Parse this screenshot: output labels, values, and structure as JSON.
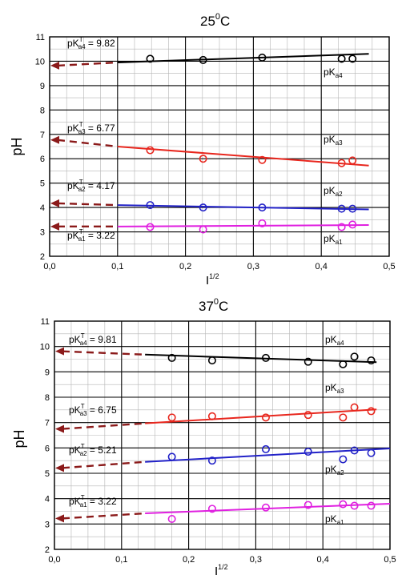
{
  "chart_data": [
    {
      "type": "scatter",
      "title": "25",
      "title_sup": "0",
      "title_suffix": "C",
      "xlabel": "I",
      "xlabel_sup": "1/2",
      "ylabel": "pH",
      "xlim": [
        0.0,
        0.5
      ],
      "ylim": [
        2,
        11
      ],
      "xticks": [
        "0,0",
        "0,1",
        "0,2",
        "0,3",
        "0,4",
        "0,5"
      ],
      "yticks": [
        "2",
        "3",
        "4",
        "5",
        "6",
        "7",
        "8",
        "9",
        "10",
        "11"
      ],
      "grid": true,
      "series": [
        {
          "name": "pKa4",
          "color": "#000000",
          "x": [
            0.148,
            0.226,
            0.313,
            0.43,
            0.446
          ],
          "y": [
            10.1,
            10.05,
            10.15,
            10.1,
            10.1
          ],
          "fit": [
            [
              0.1,
              9.95
            ],
            [
              0.47,
              10.3
            ]
          ],
          "extrap": [
            [
              0.0,
              9.82
            ],
            [
              0.1,
              9.95
            ]
          ],
          "ann_value": "9.82",
          "curve_base": "pK",
          "curve_sub": "a4",
          "value_base": "pK",
          "value_sup": "T",
          "value_sub": "a4",
          "value_sep": " = "
        },
        {
          "name": "pKa3",
          "color": "#e8271e",
          "x": [
            0.148,
            0.226,
            0.313,
            0.43,
            0.446
          ],
          "y": [
            6.35,
            6.0,
            5.95,
            5.82,
            5.93
          ],
          "fit": [
            [
              0.1,
              6.5
            ],
            [
              0.47,
              5.72
            ]
          ],
          "extrap": [
            [
              0.0,
              6.77
            ],
            [
              0.1,
              6.5
            ]
          ],
          "ann_value": "6.77",
          "curve_base": "pK",
          "curve_sub": "a3",
          "value_base": "pK",
          "value_sup": "T",
          "value_sub": "a3",
          "value_sep": " = "
        },
        {
          "name": "pKa2",
          "color": "#2222c8",
          "x": [
            0.148,
            0.226,
            0.313,
            0.43,
            0.446
          ],
          "y": [
            4.1,
            4.0,
            4.0,
            3.95,
            3.95
          ],
          "fit": [
            [
              0.1,
              4.1
            ],
            [
              0.47,
              3.92
            ]
          ],
          "extrap": [
            [
              0.0,
              4.17
            ],
            [
              0.1,
              4.1
            ]
          ],
          "ann_value": "4.17",
          "curve_base": "pK",
          "curve_sub": "a2",
          "value_base": "pK",
          "value_sup": "T",
          "value_sub": "a2",
          "value_sep": " = "
        },
        {
          "name": "pKa1",
          "color": "#e020e0",
          "x": [
            0.148,
            0.226,
            0.313,
            0.43,
            0.446
          ],
          "y": [
            3.2,
            3.1,
            3.35,
            3.2,
            3.3
          ],
          "fit": [
            [
              0.1,
              3.22
            ],
            [
              0.47,
              3.28
            ]
          ],
          "extrap": [
            [
              0.0,
              3.22
            ],
            [
              0.1,
              3.22
            ]
          ],
          "ann_value": "3.22",
          "curve_base": "pK",
          "curve_sub": "a1",
          "value_base": "pK",
          "value_sup": "T",
          "value_sub": "a1",
          "value_sep": " = "
        }
      ]
    },
    {
      "type": "scatter",
      "title": "37",
      "title_sup": "0",
      "title_suffix": "C",
      "xlabel": "I",
      "xlabel_sup": "1/2",
      "ylabel": "pH",
      "xlim": [
        0.0,
        0.5
      ],
      "ylim": [
        2,
        11
      ],
      "xticks": [
        "0,0",
        "0,1",
        "0,2",
        "0,3",
        "0,4",
        "0,5"
      ],
      "yticks": [
        "2",
        "3",
        "4",
        "5",
        "6",
        "7",
        "8",
        "9",
        "10",
        "11"
      ],
      "grid": true,
      "series": [
        {
          "name": "pKa4",
          "color": "#000000",
          "x": [
            0.175,
            0.235,
            0.315,
            0.378,
            0.43,
            0.447,
            0.472
          ],
          "y": [
            9.55,
            9.45,
            9.55,
            9.4,
            9.3,
            9.6,
            9.45
          ],
          "fit": [
            [
              0.135,
              9.68
            ],
            [
              0.48,
              9.38
            ]
          ],
          "extrap": [
            [
              0.0,
              9.81
            ],
            [
              0.135,
              9.68
            ]
          ],
          "ann_value": "9.81",
          "curve_base": "pK",
          "curve_sub": "a4",
          "value_base": "pK",
          "value_sup": "T",
          "value_sub": "a4",
          "value_sep": " = "
        },
        {
          "name": "pKa3",
          "color": "#e8271e",
          "x": [
            0.175,
            0.235,
            0.315,
            0.378,
            0.43,
            0.447,
            0.472
          ],
          "y": [
            7.2,
            7.25,
            7.2,
            7.3,
            7.2,
            7.6,
            7.45
          ],
          "fit": [
            [
              0.135,
              6.97
            ],
            [
              0.48,
              7.52
            ]
          ],
          "extrap": [
            [
              0.0,
              6.75
            ],
            [
              0.135,
              6.97
            ]
          ],
          "ann_value": "6.75",
          "curve_base": "pK",
          "curve_sub": "a3",
          "value_base": "pK",
          "value_sup": "T",
          "value_sub": "a3",
          "value_sep": " = "
        },
        {
          "name": "pKa2",
          "color": "#2222c8",
          "x": [
            0.175,
            0.235,
            0.315,
            0.378,
            0.43,
            0.447,
            0.472
          ],
          "y": [
            5.65,
            5.5,
            5.95,
            5.85,
            5.55,
            5.9,
            5.8
          ],
          "fit": [
            [
              0.135,
              5.45
            ],
            [
              0.5,
              5.98
            ]
          ],
          "extrap": [
            [
              0.0,
              5.21
            ],
            [
              0.135,
              5.45
            ]
          ],
          "ann_value": "5.21",
          "curve_base": "pK",
          "curve_sub": "a2",
          "value_base": "pK",
          "value_sup": "T",
          "value_sub": "a2",
          "value_sep": " = "
        },
        {
          "name": "pKa1",
          "color": "#e020e0",
          "x": [
            0.175,
            0.235,
            0.315,
            0.378,
            0.43,
            0.447,
            0.472
          ],
          "y": [
            3.2,
            3.6,
            3.65,
            3.75,
            3.78,
            3.72,
            3.72
          ],
          "fit": [
            [
              0.135,
              3.42
            ],
            [
              0.5,
              3.8
            ]
          ],
          "extrap": [
            [
              0.0,
              3.22
            ],
            [
              0.135,
              3.42
            ]
          ],
          "ann_value": "3.22",
          "curve_base": "pK",
          "curve_sub": "a1",
          "value_base": "pK",
          "value_sup": "T",
          "value_sub": "a1",
          "value_sep": " = "
        }
      ]
    }
  ],
  "colors": {
    "extrapolation": "#8b1a1a",
    "frame": "#000000",
    "grid_minor": "#b5b5b5"
  }
}
